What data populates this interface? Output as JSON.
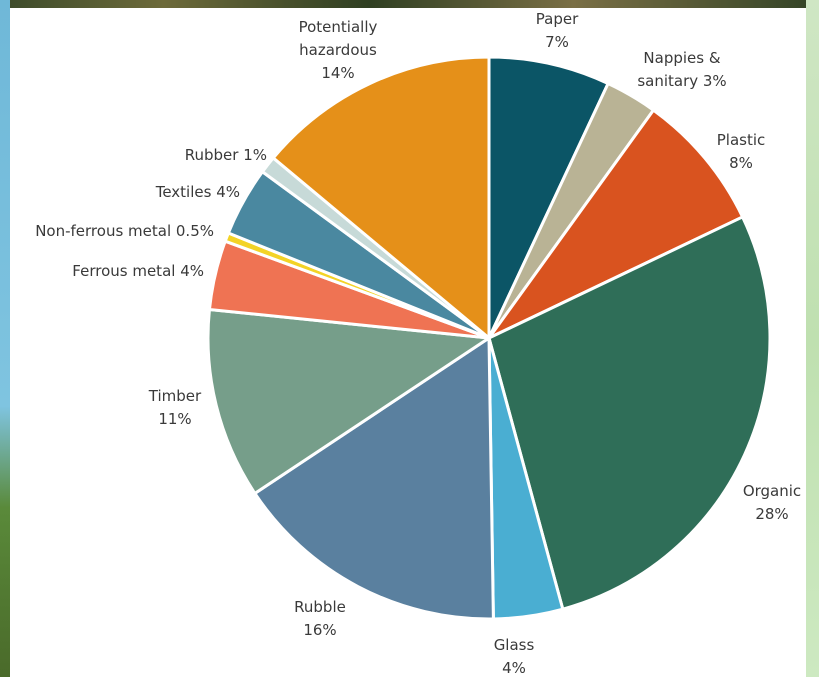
{
  "chart_data": {
    "type": "pie",
    "title": "",
    "start_angle_deg": 0,
    "direction": "clockwise",
    "slices": [
      {
        "label_lines": [
          "Paper",
          "7%"
        ],
        "value": 7,
        "color": "#0b5566"
      },
      {
        "label_lines": [
          "Nappies &",
          "sanitary 3%"
        ],
        "value": 3,
        "color": "#b9b395"
      },
      {
        "label_lines": [
          "Plastic",
          "8%"
        ],
        "value": 8,
        "color": "#d9531f"
      },
      {
        "label_lines": [
          "Organic",
          "28%"
        ],
        "value": 28,
        "color": "#2f6e58"
      },
      {
        "label_lines": [
          "Glass",
          "4%"
        ],
        "value": 4,
        "color": "#4aaed2"
      },
      {
        "label_lines": [
          "Rubble",
          "16%"
        ],
        "value": 16,
        "color": "#5a809f"
      },
      {
        "label_lines": [
          "Timber",
          "11%"
        ],
        "value": 11,
        "color": "#769e8a"
      },
      {
        "label_lines": [
          "Ferrous metal 4%"
        ],
        "value": 4,
        "color": "#ef7353"
      },
      {
        "label_lines": [
          "Non-ferrous metal 0.5%"
        ],
        "value": 0.5,
        "color": "#f3d326"
      },
      {
        "label_lines": [
          "Textiles 4%"
        ],
        "value": 4,
        "color": "#4a88a0"
      },
      {
        "label_lines": [
          "Rubber 1%"
        ],
        "value": 1,
        "color": "#c7dad8"
      },
      {
        "label_lines": [
          "Potentially",
          "hazardous",
          "14%"
        ],
        "value": 14,
        "color": "#e59019"
      }
    ]
  }
}
